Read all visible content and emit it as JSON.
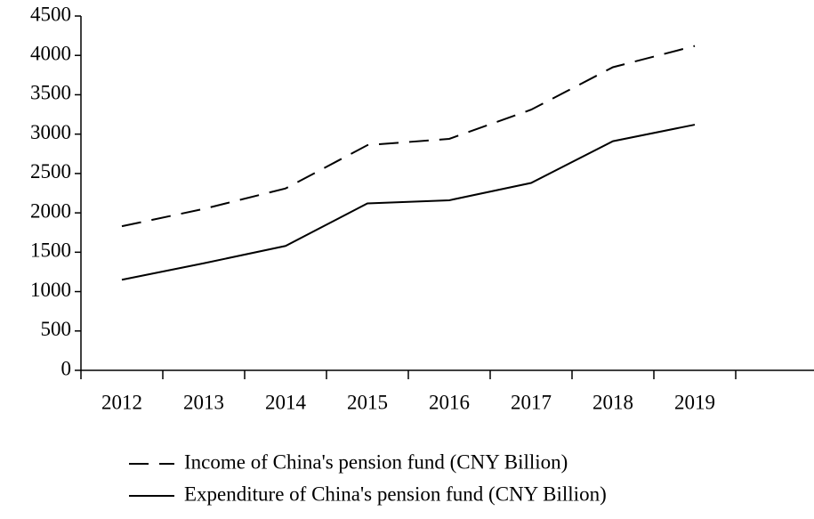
{
  "chart_data": {
    "type": "line",
    "categories": [
      "2012",
      "2013",
      "2014",
      "2015",
      "2016",
      "2017",
      "2018",
      "2019"
    ],
    "series": [
      {
        "name": "Income of China's pension fund (CNY Billion)",
        "color": "#000000",
        "line_style": "dashed",
        "values": [
          1830,
          2050,
          2310,
          2860,
          2940,
          3310,
          3850,
          4120
        ]
      },
      {
        "name": "Expenditure of China's pension fund (CNY Billion)",
        "color": "#000000",
        "line_style": "solid",
        "values": [
          1150,
          1360,
          1580,
          2120,
          2160,
          2380,
          2910,
          3120
        ]
      }
    ],
    "ylim": [
      0,
      4500
    ],
    "yticks": [
      0,
      500,
      1000,
      1500,
      2000,
      2500,
      3000,
      3500,
      4000,
      4500
    ],
    "grid": false,
    "legend": "bottom"
  }
}
